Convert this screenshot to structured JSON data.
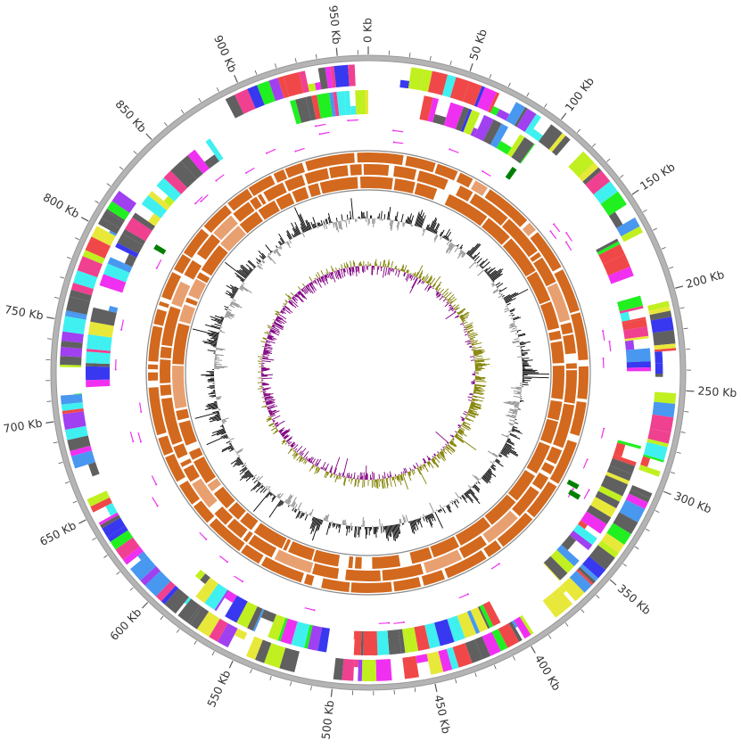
{
  "map": {
    "genome_length_kb": 965,
    "tick_labels": [
      "0 Kb",
      "50 Kb",
      "100 Kb",
      "150 Kb",
      "200 Kb",
      "250 Kb",
      "300 Kb",
      "350 Kb",
      "400 Kb",
      "450 Kb",
      "500 Kb",
      "550 Kb",
      "600 Kb",
      "650 Kb",
      "700 Kb",
      "750 Kb",
      "800 Kb",
      "850 Kb",
      "900 Kb",
      "950 Kb"
    ],
    "tick_positions_kb": [
      0,
      50,
      100,
      150,
      200,
      250,
      300,
      350,
      400,
      450,
      500,
      550,
      600,
      650,
      700,
      750,
      800,
      850,
      900,
      950
    ],
    "minor_tick_interval_kb": 10
  },
  "tracks": {
    "cds_palette": [
      "#e8e83a",
      "#f030f0",
      "#20f020",
      "#40f0f0",
      "#3838f0",
      "#606060",
      "#606060",
      "#606060",
      "#f04848",
      "#4898f0",
      "#a040f0",
      "#f04090",
      "#c0f020"
    ],
    "blast_color": "#d2691e",
    "blast_light_color": "#e8a070",
    "gc_content_positive": "#000000",
    "gc_content_negative": "#888888",
    "gc_skew_positive": "#808000",
    "gc_skew_negative": "#800080",
    "backbone_color": "#b4b4b4",
    "repeat_color": "#f030f0",
    "rna_color": "#008000"
  }
}
